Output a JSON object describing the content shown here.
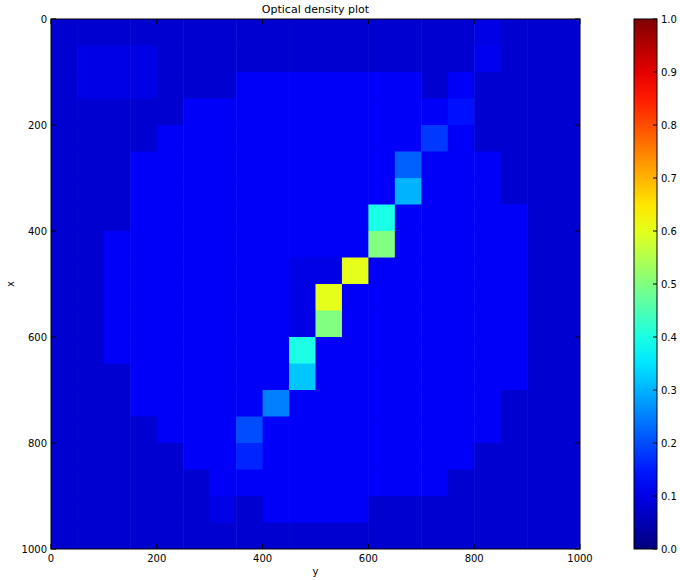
{
  "chart_data": {
    "type": "heatmap",
    "title": "Optical density plot",
    "xlabel": "y",
    "ylabel": "x",
    "xlim": [
      0,
      1000
    ],
    "ylim": [
      1000,
      0
    ],
    "xticks": [
      0,
      200,
      400,
      600,
      800,
      1000
    ],
    "yticks": [
      0,
      200,
      400,
      600,
      800,
      1000
    ],
    "cells": [
      [
        0.08,
        0.08,
        0.08,
        0.08,
        0.08,
        0.08,
        0.08,
        0.08,
        0.08,
        0.08,
        0.08,
        0.08,
        0.08,
        0.08,
        0.08,
        0.08,
        0.1,
        0.08,
        0.08,
        0.08
      ],
      [
        0.08,
        0.1,
        0.1,
        0.1,
        0.08,
        0.08,
        0.08,
        0.08,
        0.08,
        0.08,
        0.08,
        0.08,
        0.08,
        0.08,
        0.08,
        0.08,
        0.11,
        0.08,
        0.08,
        0.08
      ],
      [
        0.08,
        0.1,
        0.1,
        0.1,
        0.08,
        0.08,
        0.08,
        0.12,
        0.12,
        0.12,
        0.12,
        0.12,
        0.12,
        0.12,
        0.08,
        0.12,
        0.08,
        0.08,
        0.08,
        0.08
      ],
      [
        0.08,
        0.08,
        0.08,
        0.08,
        0.08,
        0.12,
        0.12,
        0.12,
        0.12,
        0.12,
        0.12,
        0.12,
        0.12,
        0.12,
        0.12,
        0.14,
        0.08,
        0.08,
        0.08,
        0.08
      ],
      [
        0.08,
        0.08,
        0.08,
        0.08,
        0.12,
        0.12,
        0.12,
        0.12,
        0.12,
        0.12,
        0.12,
        0.12,
        0.12,
        0.12,
        0.18,
        0.12,
        0.08,
        0.08,
        0.08,
        0.08
      ],
      [
        0.08,
        0.08,
        0.08,
        0.12,
        0.12,
        0.12,
        0.12,
        0.12,
        0.12,
        0.12,
        0.12,
        0.12,
        0.12,
        0.22,
        0.12,
        0.12,
        0.12,
        0.08,
        0.08,
        0.08
      ],
      [
        0.08,
        0.08,
        0.08,
        0.12,
        0.12,
        0.12,
        0.12,
        0.12,
        0.12,
        0.12,
        0.12,
        0.12,
        0.12,
        0.3,
        0.12,
        0.12,
        0.12,
        0.08,
        0.08,
        0.08
      ],
      [
        0.08,
        0.08,
        0.08,
        0.12,
        0.12,
        0.12,
        0.12,
        0.12,
        0.12,
        0.12,
        0.12,
        0.12,
        0.4,
        0.12,
        0.12,
        0.12,
        0.12,
        0.12,
        0.08,
        0.08
      ],
      [
        0.08,
        0.08,
        0.12,
        0.12,
        0.12,
        0.12,
        0.12,
        0.12,
        0.12,
        0.12,
        0.12,
        0.12,
        0.5,
        0.12,
        0.12,
        0.12,
        0.12,
        0.12,
        0.08,
        0.08
      ],
      [
        0.08,
        0.08,
        0.12,
        0.12,
        0.12,
        0.12,
        0.12,
        0.12,
        0.12,
        0.1,
        0.1,
        0.6,
        0.12,
        0.12,
        0.12,
        0.12,
        0.12,
        0.12,
        0.08,
        0.08
      ],
      [
        0.08,
        0.08,
        0.12,
        0.12,
        0.12,
        0.12,
        0.12,
        0.12,
        0.12,
        0.1,
        0.6,
        0.12,
        0.12,
        0.12,
        0.12,
        0.12,
        0.12,
        0.12,
        0.08,
        0.08
      ],
      [
        0.08,
        0.08,
        0.12,
        0.12,
        0.12,
        0.12,
        0.12,
        0.12,
        0.12,
        0.1,
        0.5,
        0.12,
        0.12,
        0.12,
        0.12,
        0.12,
        0.12,
        0.12,
        0.08,
        0.08
      ],
      [
        0.08,
        0.08,
        0.12,
        0.12,
        0.12,
        0.12,
        0.12,
        0.12,
        0.12,
        0.4,
        0.12,
        0.12,
        0.12,
        0.12,
        0.12,
        0.12,
        0.12,
        0.12,
        0.08,
        0.08
      ],
      [
        0.08,
        0.08,
        0.08,
        0.12,
        0.12,
        0.12,
        0.12,
        0.12,
        0.12,
        0.32,
        0.12,
        0.12,
        0.12,
        0.12,
        0.12,
        0.12,
        0.12,
        0.12,
        0.08,
        0.08
      ],
      [
        0.08,
        0.08,
        0.08,
        0.12,
        0.12,
        0.12,
        0.12,
        0.12,
        0.25,
        0.12,
        0.12,
        0.12,
        0.12,
        0.12,
        0.12,
        0.12,
        0.12,
        0.08,
        0.08,
        0.08
      ],
      [
        0.08,
        0.08,
        0.08,
        0.08,
        0.12,
        0.12,
        0.12,
        0.2,
        0.12,
        0.12,
        0.12,
        0.12,
        0.12,
        0.12,
        0.12,
        0.12,
        0.12,
        0.08,
        0.08,
        0.08
      ],
      [
        0.08,
        0.08,
        0.08,
        0.08,
        0.08,
        0.12,
        0.12,
        0.16,
        0.12,
        0.12,
        0.12,
        0.12,
        0.12,
        0.12,
        0.12,
        0.12,
        0.08,
        0.08,
        0.08,
        0.08
      ],
      [
        0.08,
        0.08,
        0.08,
        0.08,
        0.08,
        0.08,
        0.12,
        0.12,
        0.12,
        0.12,
        0.12,
        0.12,
        0.12,
        0.12,
        0.12,
        0.08,
        0.08,
        0.08,
        0.08,
        0.08
      ],
      [
        0.08,
        0.08,
        0.08,
        0.08,
        0.08,
        0.08,
        0.1,
        0.08,
        0.12,
        0.12,
        0.12,
        0.12,
        0.08,
        0.08,
        0.08,
        0.08,
        0.08,
        0.08,
        0.08,
        0.08
      ],
      [
        0.08,
        0.08,
        0.08,
        0.08,
        0.08,
        0.08,
        0.08,
        0.08,
        0.08,
        0.08,
        0.08,
        0.08,
        0.08,
        0.08,
        0.08,
        0.08,
        0.08,
        0.08,
        0.08,
        0.08
      ]
    ],
    "colorbar_range": [
      0,
      1
    ],
    "colorbar_ticks": [
      {
        "value": 0,
        "label": "0.0"
      },
      0.1,
      0.2,
      0.3,
      0.4,
      0.5,
      0.6,
      0.7,
      0.8,
      0.9,
      {
        "value": 1,
        "label": "1.0"
      }
    ]
  }
}
